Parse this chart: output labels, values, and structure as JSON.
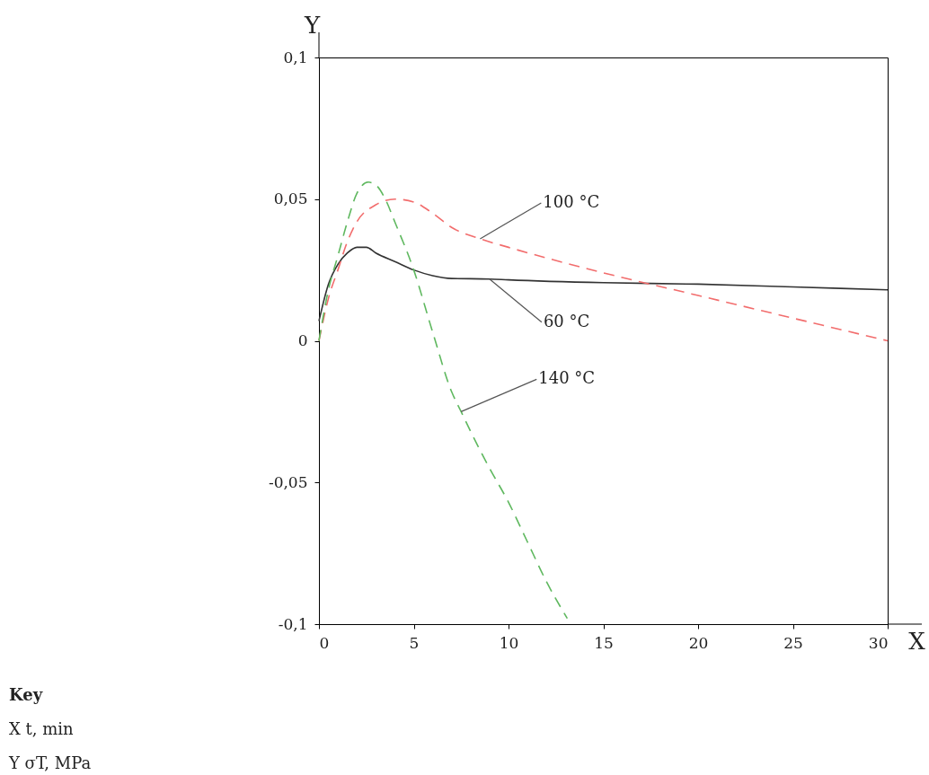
{
  "chart_data": {
    "type": "line",
    "xlabel": "X",
    "ylabel": "Y",
    "xlim": [
      0,
      30
    ],
    "ylim": [
      -0.1,
      0.1
    ],
    "xticks": [
      0,
      5,
      10,
      15,
      20,
      25,
      30
    ],
    "yticks": [
      {
        "value": -0.1,
        "label": "-0,1"
      },
      {
        "value": -0.05,
        "label": "-0,05"
      },
      0,
      {
        "value": 0.05,
        "label": "0,05"
      },
      {
        "value": 0.1,
        "label": "0,1"
      }
    ],
    "grid": false,
    "marker": "none",
    "series": [
      {
        "color": "#333333",
        "line_style": "solid",
        "x": [
          0,
          0.5,
          1,
          1.5,
          2,
          2.5,
          3,
          4,
          5,
          6,
          7,
          9,
          10,
          15,
          20,
          25,
          30
        ],
        "values": [
          0.007,
          0.02,
          0.027,
          0.031,
          0.033,
          0.033,
          0.031,
          0.028,
          0.025,
          0.023,
          0.022,
          0.0218,
          0.0215,
          0.0205,
          0.02,
          0.019,
          0.018
        ]
      },
      {
        "color": "#f26d6d",
        "line_style": "dashed",
        "x": [
          0,
          0.5,
          1,
          1.5,
          2,
          3,
          4,
          5,
          6,
          7,
          8.5,
          10,
          15,
          20,
          25,
          30
        ],
        "values": [
          0,
          0.015,
          0.025,
          0.035,
          0.042,
          0.048,
          0.05,
          0.049,
          0.045,
          0.04,
          0.036,
          0.033,
          0.024,
          0.016,
          0.008,
          0
        ]
      },
      {
        "color": "#5fb85f",
        "line_style": "dashed",
        "x": [
          0,
          0.5,
          1,
          1.5,
          2,
          2.6,
          3,
          3.5,
          4,
          5,
          6,
          7,
          7.5,
          8,
          9,
          10,
          11,
          12,
          13.1
        ],
        "values": [
          0,
          0.018,
          0.03,
          0.042,
          0.052,
          0.056,
          0.055,
          0.05,
          0.042,
          0.025,
          0.003,
          -0.018,
          -0.025,
          -0.032,
          -0.045,
          -0.057,
          -0.071,
          -0.085,
          -0.098
        ]
      }
    ],
    "annotations": [
      {
        "text": "100 °C",
        "x": 8.5,
        "y": 0.036
      },
      {
        "text": "60 °C",
        "x": 9,
        "y": 0.0218
      },
      {
        "text": "140 °C",
        "x": 7.5,
        "y": -0.025
      },
      "Key",
      "X    t, min",
      "Y    σT, MPa"
    ]
  }
}
